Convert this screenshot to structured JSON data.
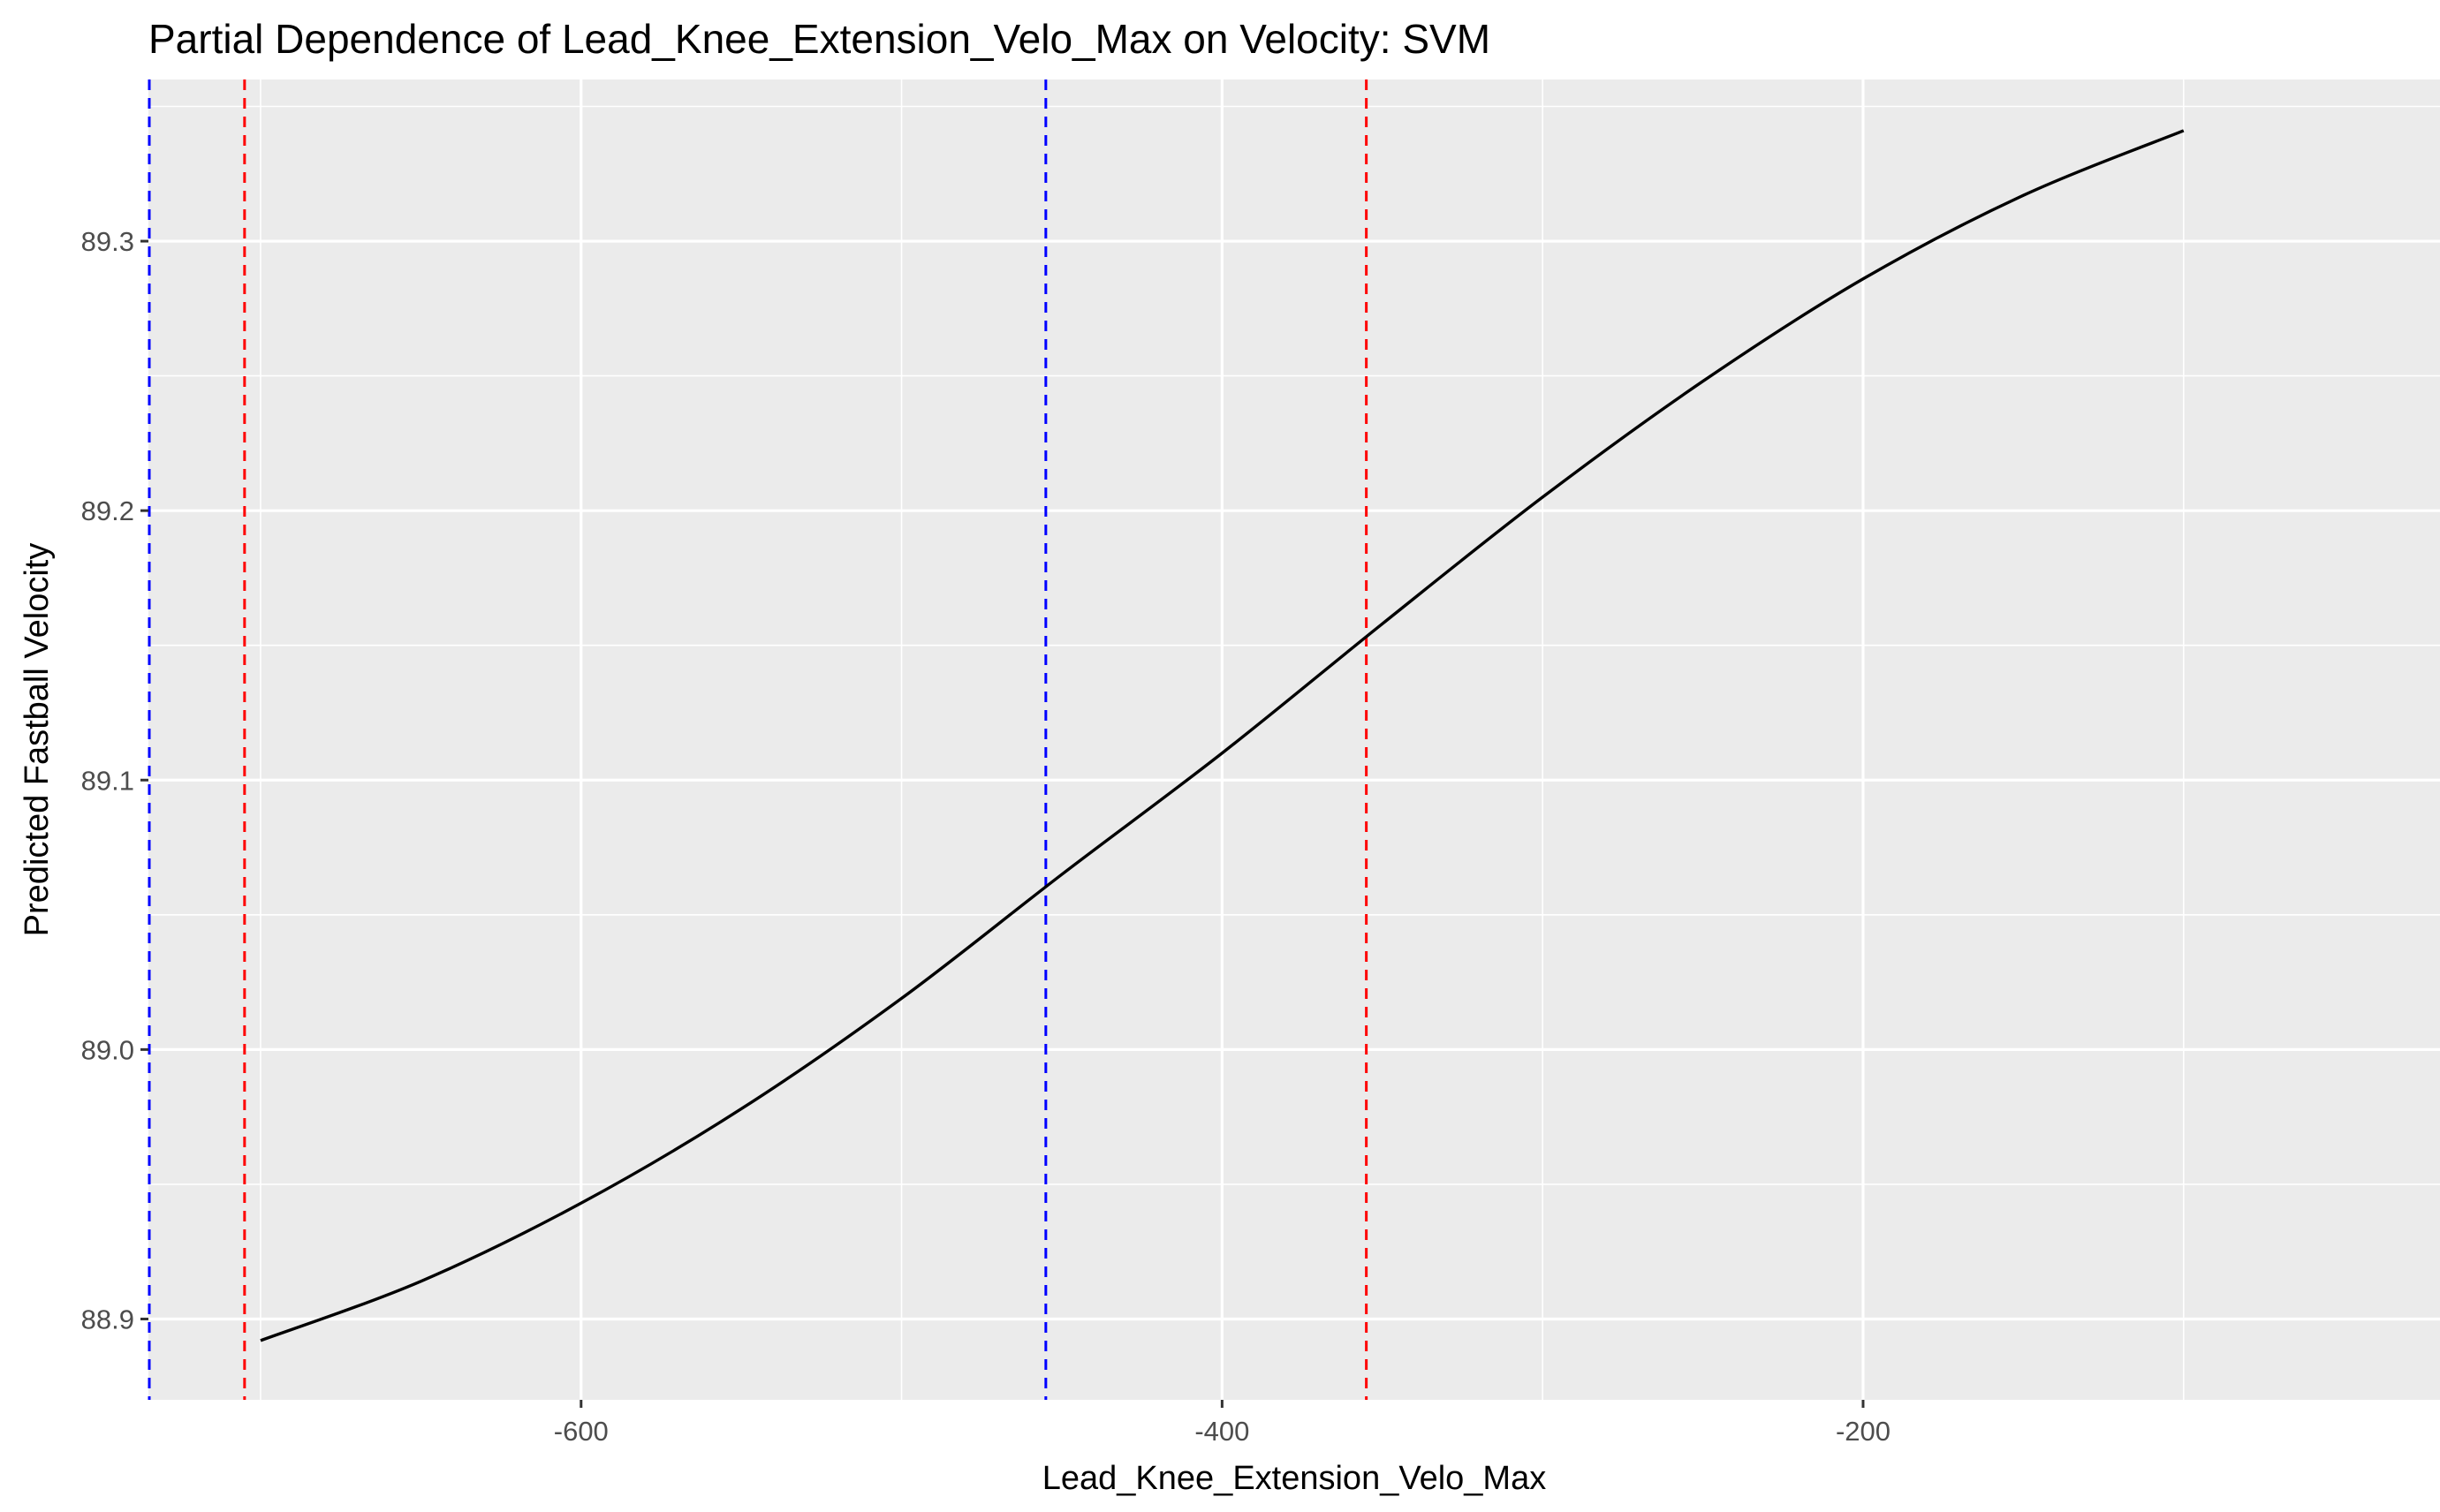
{
  "chart_data": {
    "type": "line",
    "title": "Partial Dependence of Lead_Knee_Extension_Velo_Max on Velocity: SVM",
    "xlabel": "Lead_Knee_Extension_Velo_Max",
    "ylabel": "Predicted Fastball Velocity",
    "xlim": [
      -735,
      -20
    ],
    "ylim": [
      88.87,
      89.36
    ],
    "x_ticks": [
      -600,
      -400,
      -200
    ],
    "x_tick_labels": [
      "-600",
      "-400",
      "-200"
    ],
    "y_ticks": [
      88.9,
      89.0,
      89.1,
      89.2,
      89.3
    ],
    "y_tick_labels": [
      "88.9",
      "89.0",
      "89.1",
      "89.2",
      "89.3"
    ],
    "grid": true,
    "background": "#ebebeb",
    "grid_color": "#ffffff",
    "series": [
      {
        "color": "#000000",
        "x": [
          -700,
          -650,
          -600,
          -550,
          -500,
          -450,
          -400,
          -350,
          -300,
          -250,
          -200,
          -150,
          -100
        ],
        "y": [
          88.892,
          88.914,
          88.943,
          88.978,
          89.019,
          89.065,
          89.11,
          89.158,
          89.205,
          89.248,
          89.286,
          89.317,
          89.341
        ]
      }
    ],
    "reference_lines": [
      {
        "x": -735,
        "color": "#0000ff",
        "style": "dashed"
      },
      {
        "x": -705,
        "color": "#ff0000",
        "style": "dashed"
      },
      {
        "x": -455,
        "color": "#0000ff",
        "style": "dashed"
      },
      {
        "x": -355,
        "color": "#ff0000",
        "style": "dashed"
      }
    ]
  }
}
